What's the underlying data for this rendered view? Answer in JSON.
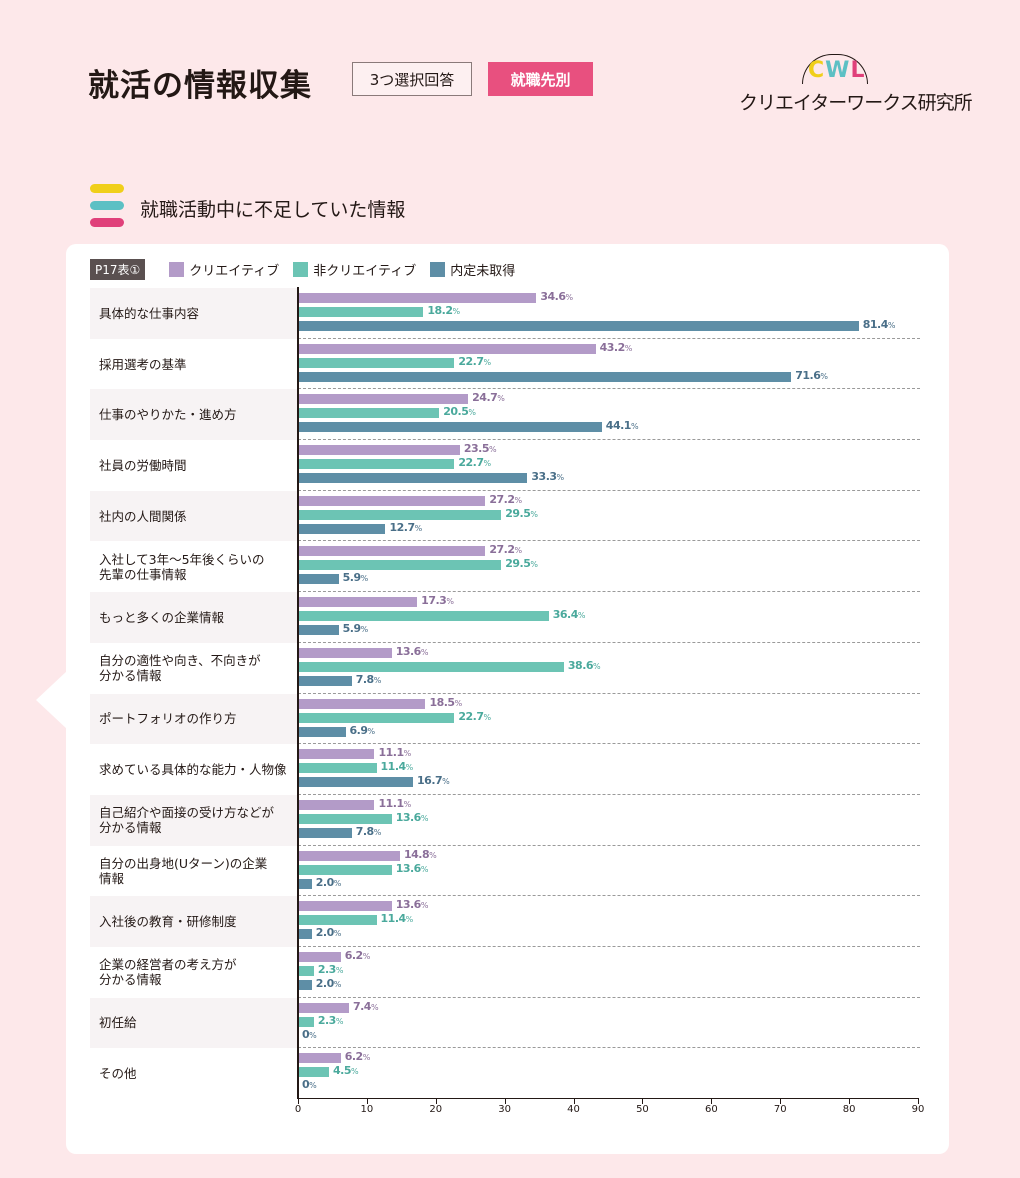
{
  "header": {
    "title": "就活の情報収集",
    "tag_outline": "3つ選択回答",
    "tag_filled": "就職先別",
    "logo_letters": [
      "C",
      "W",
      "L"
    ],
    "logo_text": "クリエイターワークス研究所"
  },
  "section": {
    "title": "就職活動中に不足していた情報",
    "bar_colors": [
      "#f0cf1a",
      "#5cc0c4",
      "#e0407a"
    ]
  },
  "legend": {
    "table_tag": "P17表①",
    "items": [
      {
        "label": "クリエイティブ",
        "color": "#b39bc8"
      },
      {
        "label": "非クリエイティブ",
        "color": "#6cc4b4"
      },
      {
        "label": "内定未取得",
        "color": "#5e8ea6"
      }
    ]
  },
  "chart_data": {
    "type": "bar",
    "orientation": "horizontal",
    "title": "就職活動中に不足していた情報",
    "xlabel": "",
    "ylabel": "",
    "xlim": [
      0,
      90
    ],
    "x_ticks": [
      0,
      10,
      20,
      30,
      40,
      50,
      60,
      70,
      80,
      90
    ],
    "grid": "dashed separators between categories",
    "legend_position": "top-left",
    "unit": "%",
    "categories": [
      "具体的な仕事内容",
      "採用選考の基準",
      "仕事のやりかた・進め方",
      "社員の労働時間",
      "社内の人間関係",
      "入社して3年〜5年後くらいの先輩の仕事情報",
      "もっと多くの企業情報",
      "自分の適性や向き、不向きが分かる情報",
      "ポートフォリオの作り方",
      "求めている具体的な能力・人物像",
      "自己紹介や面接の受け方などが分かる情報",
      "自分の出身地(Uターン)の企業情報",
      "入社後の教育・研修制度",
      "企業の経営者の考え方が分かる情報",
      "初任給",
      "その他"
    ],
    "series": [
      {
        "name": "クリエイティブ",
        "color": "#b39bc8",
        "values": [
          34.6,
          43.2,
          24.7,
          23.5,
          27.2,
          27.2,
          17.3,
          13.6,
          18.5,
          11.1,
          11.1,
          14.8,
          13.6,
          6.2,
          7.4,
          6.2
        ]
      },
      {
        "name": "非クリエイティブ",
        "color": "#6cc4b4",
        "values": [
          18.2,
          22.7,
          20.5,
          22.7,
          29.5,
          29.5,
          36.4,
          38.6,
          22.7,
          11.4,
          13.6,
          13.6,
          11.4,
          2.3,
          2.3,
          4.5
        ]
      },
      {
        "name": "内定未取得",
        "color": "#5e8ea6",
        "values": [
          81.4,
          71.6,
          44.1,
          33.3,
          12.7,
          5.9,
          5.9,
          7.8,
          6.9,
          16.7,
          7.8,
          2.0,
          2.0,
          2.0,
          0,
          0
        ]
      }
    ],
    "value_labels": [
      [
        "34.6",
        "18.2",
        "81.4"
      ],
      [
        "43.2",
        "22.7",
        "71.6"
      ],
      [
        "24.7",
        "20.5",
        "44.1"
      ],
      [
        "23.5",
        "22.7",
        "33.3"
      ],
      [
        "27.2",
        "29.5",
        "12.7"
      ],
      [
        "27.2",
        "29.5",
        "5.9"
      ],
      [
        "17.3",
        "36.4",
        "5.9"
      ],
      [
        "13.6",
        "38.6",
        "7.8"
      ],
      [
        "18.5",
        "22.7",
        "6.9"
      ],
      [
        "11.1",
        "11.4",
        "16.7"
      ],
      [
        "11.1",
        "13.6",
        "7.8"
      ],
      [
        "14.8",
        "13.6",
        "2.0"
      ],
      [
        "13.6",
        "11.4",
        "2.0"
      ],
      [
        "6.2",
        "2.3",
        "2.0"
      ],
      [
        "7.4",
        "2.3",
        "0"
      ],
      [
        "6.2",
        "4.5",
        "0"
      ]
    ]
  },
  "row_labels": [
    [
      "具体的な仕事内容"
    ],
    [
      "採用選考の基準"
    ],
    [
      "仕事のやりかた・進め方"
    ],
    [
      "社員の労働時間"
    ],
    [
      "社内の人間関係"
    ],
    [
      "入社して3年〜5年後くらいの",
      "先輩の仕事情報"
    ],
    [
      "もっと多くの企業情報"
    ],
    [
      "自分の適性や向き、不向きが",
      "分かる情報"
    ],
    [
      "ポートフォリオの作り方"
    ],
    [
      "求めている具体的な能力・人物像"
    ],
    [
      "自己紹介や面接の受け方などが",
      "分かる情報"
    ],
    [
      "自分の出身地(Uターン)の企業",
      "情報"
    ],
    [
      "入社後の教育・研修制度"
    ],
    [
      "企業の経営者の考え方が",
      "分かる情報"
    ],
    [
      "初任給"
    ],
    [
      "その他"
    ]
  ],
  "percent_suffix": "%"
}
